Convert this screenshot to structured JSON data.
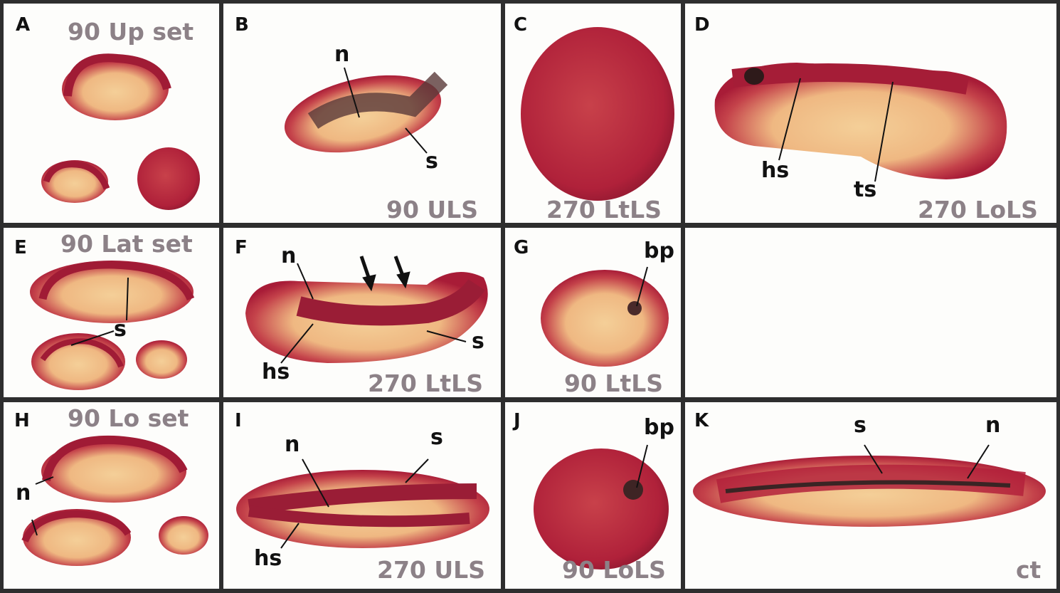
{
  "figure": {
    "colors": {
      "stain": "#b3213b",
      "yolk": "#f2c98e",
      "condition_label": "#8c8187",
      "border": "#2e2e2e"
    },
    "panels": [
      {
        "letter": "A",
        "condition": "90 Up set",
        "annotations": []
      },
      {
        "letter": "B",
        "condition": "90 ULS",
        "annotations": [
          "n",
          "s"
        ]
      },
      {
        "letter": "C",
        "condition": "270 LtLS",
        "annotations": []
      },
      {
        "letter": "D",
        "condition": "270 LoLS",
        "annotations": [
          "hs",
          "ts"
        ]
      },
      {
        "letter": "E",
        "condition": "90 Lat set",
        "annotations": [
          "s"
        ]
      },
      {
        "letter": "F",
        "condition": "270 LtLS",
        "annotations": [
          "n",
          "hs",
          "s"
        ]
      },
      {
        "letter": "G",
        "condition": "90 LtLS",
        "annotations": [
          "bp"
        ]
      },
      {
        "letter": "H",
        "condition": "90 Lo set",
        "annotations": [
          "n"
        ]
      },
      {
        "letter": "I",
        "condition": "270 ULS",
        "annotations": [
          "n",
          "s",
          "hs"
        ]
      },
      {
        "letter": "J",
        "condition": "90 LoLS",
        "annotations": [
          "bp"
        ]
      },
      {
        "letter": "K",
        "condition": "ct",
        "annotations": [
          "s",
          "n"
        ]
      }
    ]
  }
}
